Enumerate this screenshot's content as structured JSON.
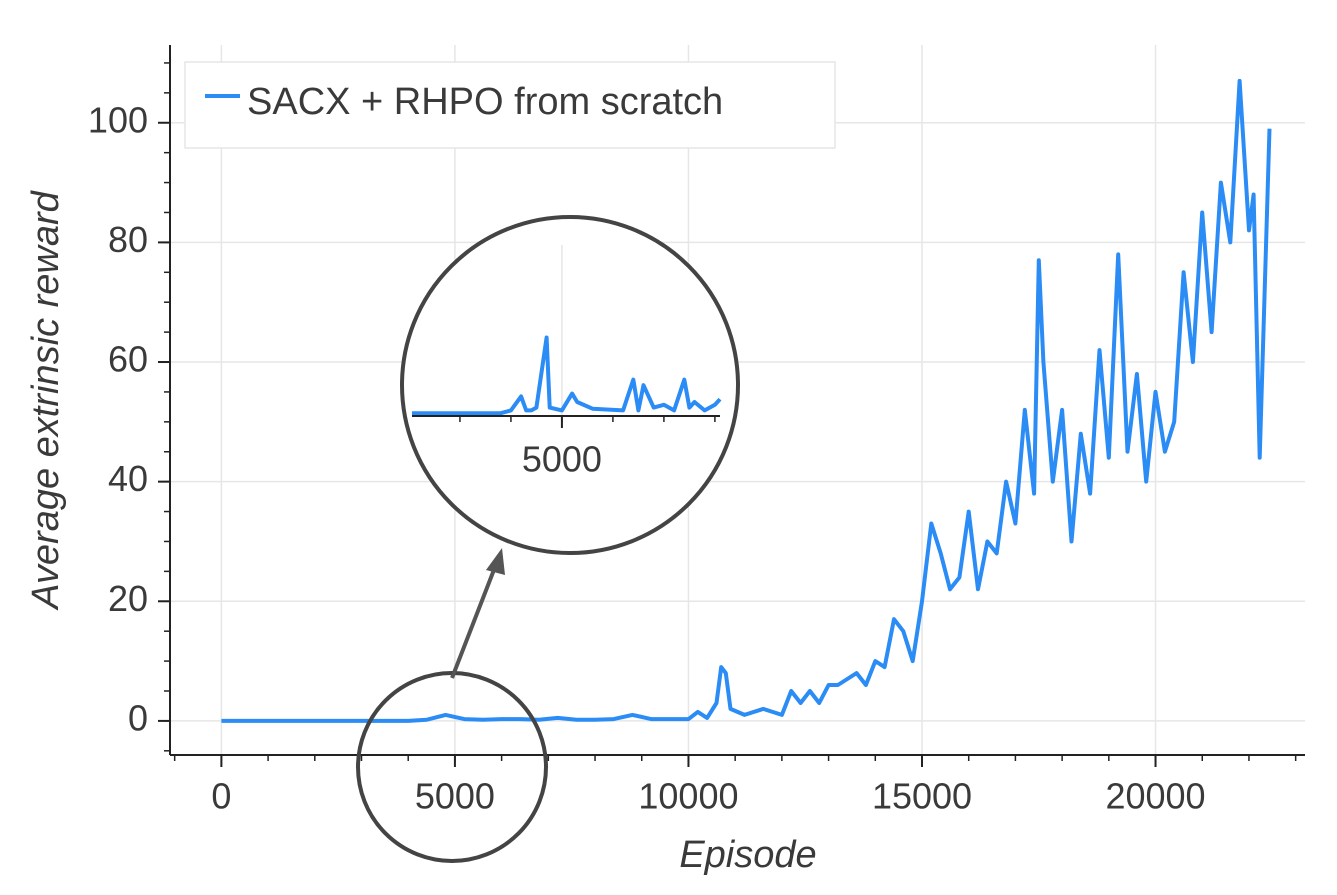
{
  "chart_data": [
    {
      "type": "line",
      "xlabel": "Episode",
      "ylabel": "Average extrinsic reward",
      "x": [
        0,
        2000,
        4000,
        4400,
        4800,
        5200,
        5600,
        6000,
        6400,
        6800,
        7200,
        7600,
        8000,
        8400,
        8800,
        9200,
        9600,
        10000,
        10200,
        10400,
        10600,
        10700,
        10800,
        10900,
        11200,
        11600,
        12000,
        12200,
        12400,
        12600,
        12800,
        13000,
        13200,
        13400,
        13600,
        13800,
        14000,
        14200,
        14400,
        14600,
        14800,
        15000,
        15200,
        15400,
        15600,
        15800,
        16000,
        16200,
        16400,
        16600,
        16800,
        17000,
        17200,
        17400,
        17500,
        17600,
        17800,
        18000,
        18200,
        18400,
        18600,
        18800,
        19000,
        19200,
        19400,
        19600,
        19800,
        20000,
        20200,
        20400,
        20600,
        20800,
        21000,
        21200,
        21400,
        21600,
        21800,
        22000,
        22100,
        22230,
        22440
      ],
      "series": [
        {
          "name": "SACX + RHPO from scratch",
          "color": "#2b8cf5",
          "values": [
            0,
            0,
            0,
            0.2,
            1,
            0.3,
            0.2,
            0.3,
            0.3,
            0.2,
            0.5,
            0.2,
            0.2,
            0.3,
            1,
            0.3,
            0.3,
            0.3,
            1.5,
            0.5,
            3,
            9,
            8,
            2,
            1,
            2,
            1,
            5,
            3,
            5,
            3,
            6,
            6,
            7,
            8,
            6,
            10,
            9,
            17,
            15,
            10,
            20,
            33,
            28,
            22,
            24,
            35,
            22,
            30,
            28,
            40,
            33,
            52,
            38,
            77,
            60,
            40,
            52,
            30,
            48,
            38,
            62,
            44,
            78,
            45,
            58,
            40,
            55,
            45,
            50,
            75,
            60,
            85,
            65,
            90,
            80,
            107,
            82,
            88,
            44,
            99
          ]
        }
      ],
      "xlim": [
        -1100,
        23200
      ],
      "ylim": [
        -5.7,
        113
      ],
      "xticks": [
        0,
        5000,
        10000,
        15000,
        20000
      ],
      "yticks": [
        0,
        20,
        40,
        60,
        80,
        100
      ],
      "xminor": 1000,
      "yminor": 5,
      "grid": true,
      "legend": "upper left"
    },
    {
      "type": "inset",
      "x": [
        3530,
        4400,
        4500,
        4600,
        4650,
        4700,
        4750,
        4850,
        4880,
        5000,
        5100,
        5150,
        5300,
        5600,
        5700,
        5750,
        5800,
        5900,
        6000,
        6100,
        6200,
        6250,
        6300,
        6400,
        6500,
        6550
      ],
      "values": [
        0,
        0,
        0.05,
        0.3,
        0.05,
        0.05,
        0.1,
        1.35,
        0.1,
        0.05,
        0.35,
        0.2,
        0.08,
        0.05,
        0.6,
        0.05,
        0.5,
        0.1,
        0.15,
        0.05,
        0.6,
        0.1,
        0.2,
        0.05,
        0.15,
        0.25
      ],
      "color": "#2b8cf5",
      "xlim": [
        3530,
        6550
      ],
      "ylim": [
        -0.05,
        3
      ],
      "xticks": [
        5000
      ],
      "xminor": 500,
      "grid": true
    }
  ]
}
